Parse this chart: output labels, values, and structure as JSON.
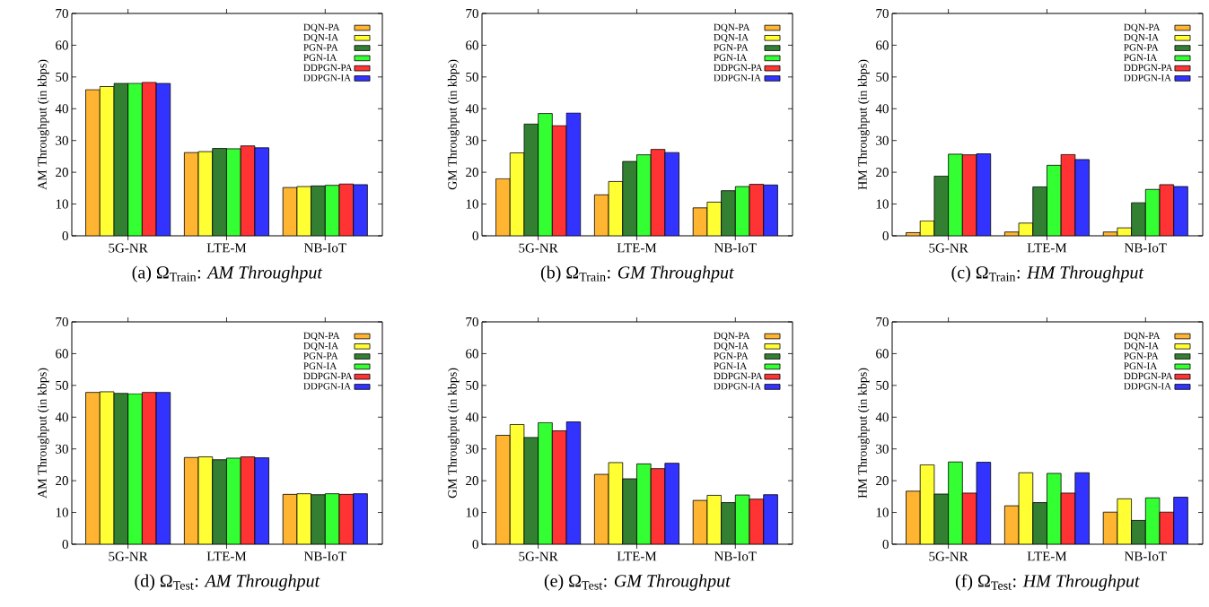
{
  "chart_data": [
    {
      "type": "bar",
      "title": "(a) Ω$_{Train}$: *AM Throughput*",
      "ylabel": "AM Throughput (in kbps)",
      "categories": [
        "5G-NR",
        "LTE-M",
        "NB-IoT"
      ],
      "ylim": [
        0,
        70
      ],
      "yticks": [
        0,
        10,
        20,
        30,
        40,
        50,
        60,
        70
      ],
      "legend": "top right",
      "series": [
        {
          "name": "DQN-PA",
          "color": "#ffb531",
          "values": [
            46,
            26.2,
            15.2
          ]
        },
        {
          "name": "DQN-IA",
          "color": "#ffff33",
          "values": [
            47,
            26.5,
            15.5
          ]
        },
        {
          "name": "PGN-PA",
          "color": "#338033",
          "values": [
            48,
            27.5,
            15.7
          ]
        },
        {
          "name": "PGN-IA",
          "color": "#33ff33",
          "values": [
            48,
            27.4,
            15.9
          ]
        },
        {
          "name": "DDPGN-PA",
          "color": "#ff3333",
          "values": [
            48.3,
            28.3,
            16.3
          ]
        },
        {
          "name": "DDPGN-IA",
          "color": "#3333ff",
          "values": [
            48,
            27.7,
            16.1
          ]
        }
      ]
    },
    {
      "type": "bar",
      "title": "(b) Ω$_{Train}$: *GM Throughput*",
      "ylabel": "GM Throughput (in kbps)",
      "categories": [
        "5G-NR",
        "LTE-M",
        "NB-IoT"
      ],
      "ylim": [
        0,
        70
      ],
      "yticks": [
        0,
        10,
        20,
        30,
        40,
        50,
        60,
        70
      ],
      "legend": "top right",
      "series": [
        {
          "name": "DQN-PA",
          "color": "#ffb531",
          "values": [
            18,
            12.9,
            8.8
          ]
        },
        {
          "name": "DQN-IA",
          "color": "#ffff33",
          "values": [
            26.1,
            17.1,
            10.6
          ]
        },
        {
          "name": "PGN-PA",
          "color": "#338033",
          "values": [
            35.2,
            23.4,
            14.2
          ]
        },
        {
          "name": "PGN-IA",
          "color": "#33ff33",
          "values": [
            38.5,
            25.5,
            15.5
          ]
        },
        {
          "name": "DDPGN-PA",
          "color": "#ff3333",
          "values": [
            34.7,
            27.2,
            16.2
          ]
        },
        {
          "name": "DDPGN-IA",
          "color": "#3333ff",
          "values": [
            38.7,
            26.2,
            16.0
          ]
        }
      ]
    },
    {
      "type": "bar",
      "title": "(c) Ω$_{Train}$: *HM Throughput*",
      "ylabel": "HM Throughput (in kbps)",
      "categories": [
        "5G-NR",
        "LTE-M",
        "NB-IoT"
      ],
      "ylim": [
        0,
        70
      ],
      "yticks": [
        0,
        10,
        20,
        30,
        40,
        50,
        60,
        70
      ],
      "legend": "top right",
      "series": [
        {
          "name": "DQN-PA",
          "color": "#ffb531",
          "values": [
            1.0,
            1.2,
            1.2
          ]
        },
        {
          "name": "DQN-IA",
          "color": "#ffff33",
          "values": [
            4.7,
            4.0,
            2.5
          ]
        },
        {
          "name": "PGN-PA",
          "color": "#338033",
          "values": [
            18.8,
            15.4,
            10.4
          ]
        },
        {
          "name": "PGN-IA",
          "color": "#33ff33",
          "values": [
            25.7,
            22.2,
            14.6
          ]
        },
        {
          "name": "DDPGN-PA",
          "color": "#ff3333",
          "values": [
            25.5,
            25.6,
            16.1
          ]
        },
        {
          "name": "DDPGN-IA",
          "color": "#3333ff",
          "values": [
            25.8,
            24.0,
            15.5
          ]
        }
      ]
    },
    {
      "type": "bar",
      "title": "(d) Ω$_{Test}$: *AM Throughput*",
      "ylabel": "AM Throughput (in kbps)",
      "categories": [
        "5G-NR",
        "LTE-M",
        "NB-IoT"
      ],
      "ylim": [
        0,
        70
      ],
      "yticks": [
        0,
        10,
        20,
        30,
        40,
        50,
        60,
        70
      ],
      "legend": "top right",
      "series": [
        {
          "name": "DQN-PA",
          "color": "#ffb531",
          "values": [
            47.8,
            27.3,
            15.7
          ]
        },
        {
          "name": "DQN-IA",
          "color": "#ffff33",
          "values": [
            48.0,
            27.5,
            15.9
          ]
        },
        {
          "name": "PGN-PA",
          "color": "#338033",
          "values": [
            47.5,
            26.6,
            15.6
          ]
        },
        {
          "name": "PGN-IA",
          "color": "#33ff33",
          "values": [
            47.4,
            27.1,
            15.9
          ]
        },
        {
          "name": "DDPGN-PA",
          "color": "#ff3333",
          "values": [
            47.8,
            27.5,
            15.7
          ]
        },
        {
          "name": "DDPGN-IA",
          "color": "#3333ff",
          "values": [
            47.8,
            27.2,
            15.9
          ]
        }
      ]
    },
    {
      "type": "bar",
      "title": "(e) Ω$_{Test}$: *GM Throughput*",
      "ylabel": "GM Throughput (in kbps)",
      "categories": [
        "5G-NR",
        "LTE-M",
        "NB-IoT"
      ],
      "ylim": [
        0,
        70
      ],
      "yticks": [
        0,
        10,
        20,
        30,
        40,
        50,
        60,
        70
      ],
      "legend": "top right",
      "series": [
        {
          "name": "DQN-PA",
          "color": "#ffb531",
          "values": [
            34.3,
            22.0,
            13.8
          ]
        },
        {
          "name": "DQN-IA",
          "color": "#ffff33",
          "values": [
            37.7,
            25.7,
            15.4
          ]
        },
        {
          "name": "PGN-PA",
          "color": "#338033",
          "values": [
            33.6,
            20.6,
            13.1
          ]
        },
        {
          "name": "PGN-IA",
          "color": "#33ff33",
          "values": [
            38.3,
            25.3,
            15.5
          ]
        },
        {
          "name": "DDPGN-PA",
          "color": "#ff3333",
          "values": [
            35.7,
            23.8,
            14.2
          ]
        },
        {
          "name": "DDPGN-IA",
          "color": "#3333ff",
          "values": [
            38.5,
            25.5,
            15.6
          ]
        }
      ]
    },
    {
      "type": "bar",
      "title": "(f) Ω$_{Test}$: *HM Throughput*",
      "ylabel": "HM Throughput (in kbps)",
      "categories": [
        "5G-NR",
        "LTE-M",
        "NB-IoT"
      ],
      "ylim": [
        0,
        70
      ],
      "yticks": [
        0,
        10,
        20,
        30,
        40,
        50,
        60,
        70
      ],
      "legend": "top right",
      "series": [
        {
          "name": "DQN-PA",
          "color": "#ffb531",
          "values": [
            16.7,
            12.1,
            10.1
          ]
        },
        {
          "name": "DQN-IA",
          "color": "#ffff33",
          "values": [
            25.0,
            22.5,
            14.3
          ]
        },
        {
          "name": "PGN-PA",
          "color": "#338033",
          "values": [
            15.8,
            13.1,
            7.5
          ]
        },
        {
          "name": "PGN-IA",
          "color": "#33ff33",
          "values": [
            25.9,
            22.3,
            14.6
          ]
        },
        {
          "name": "DDPGN-PA",
          "color": "#ff3333",
          "values": [
            16.1,
            16.1,
            10.1
          ]
        },
        {
          "name": "DDPGN-IA",
          "color": "#3333ff",
          "values": [
            25.8,
            22.5,
            14.8
          ]
        }
      ]
    }
  ]
}
